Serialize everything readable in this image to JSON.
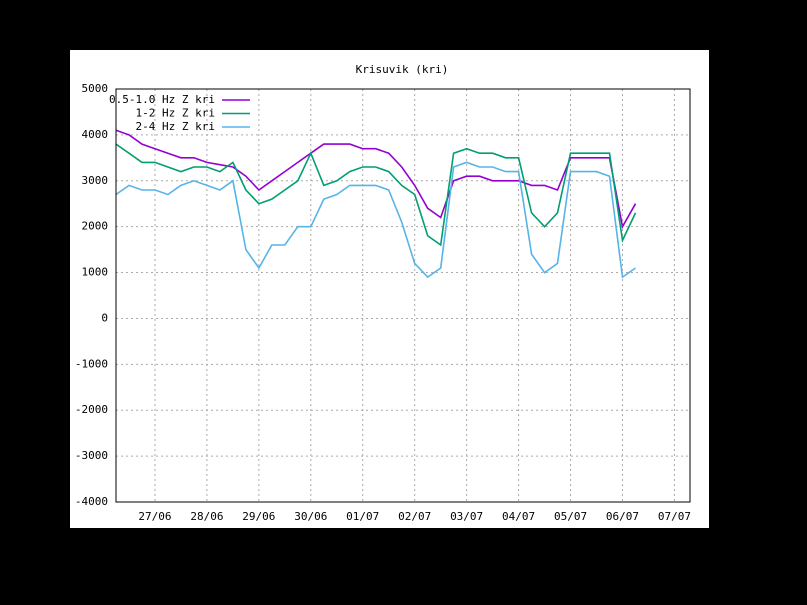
{
  "chart_data": {
    "type": "line",
    "title": "Krisuvik (kri)",
    "x": [
      -0.75,
      -0.5,
      -0.25,
      0,
      0.25,
      0.5,
      0.75,
      1,
      1.25,
      1.5,
      1.75,
      2,
      2.25,
      2.5,
      2.75,
      3,
      3.25,
      3.5,
      3.75,
      4,
      4.25,
      4.5,
      4.75,
      5,
      5.25,
      5.5,
      5.75,
      6,
      6.25,
      6.5,
      6.75,
      7,
      7.25,
      7.5,
      7.75,
      8,
      8.25,
      8.5,
      8.75,
      9,
      9.25
    ],
    "series": [
      {
        "name": "0.5-1.0 Hz Z kri",
        "color": "#9400d3",
        "values": [
          4100,
          4000,
          3800,
          3700,
          3600,
          3500,
          3500,
          3400,
          3350,
          3300,
          3100,
          2800,
          3000,
          3200,
          3400,
          3600,
          3800,
          3800,
          3800,
          3700,
          3700,
          3600,
          3300,
          2900,
          2400,
          2200,
          3000,
          3100,
          3100,
          3000,
          3000,
          3000,
          2900,
          2900,
          2800,
          3500,
          3500,
          3500,
          3500,
          2000,
          2500
        ]
      },
      {
        "name": "1-2 Hz Z kri",
        "color": "#009e73",
        "values": [
          3800,
          3600,
          3400,
          3400,
          3300,
          3200,
          3300,
          3300,
          3200,
          3400,
          2800,
          2500,
          2600,
          2800,
          3000,
          3600,
          2900,
          3000,
          3200,
          3300,
          3300,
          3200,
          2900,
          2700,
          1800,
          1600,
          3600,
          3700,
          3600,
          3600,
          3500,
          3500,
          2300,
          2000,
          2300,
          3600,
          3600,
          3600,
          3600,
          1700,
          2300
        ]
      },
      {
        "name": "2-4 Hz Z kri",
        "color": "#56b4e9",
        "values": [
          2700,
          2900,
          2800,
          2800,
          2700,
          2900,
          3000,
          2900,
          2800,
          3000,
          1500,
          1100,
          1600,
          1600,
          2000,
          2000,
          2600,
          2700,
          2900,
          2900,
          2900,
          2800,
          2100,
          1200,
          900,
          1100,
          3300,
          3400,
          3300,
          3300,
          3200,
          3200,
          1400,
          1000,
          1200,
          3200,
          3200,
          3200,
          3100,
          900,
          1100
        ]
      }
    ],
    "xlim": [
      -0.75,
      10.3
    ],
    "xticks": [
      {
        "value": 0,
        "label": "27/06"
      },
      {
        "value": 1,
        "label": "28/06"
      },
      {
        "value": 2,
        "label": "29/06"
      },
      {
        "value": 3,
        "label": "30/06"
      },
      {
        "value": 4,
        "label": "01/07"
      },
      {
        "value": 5,
        "label": "02/07"
      },
      {
        "value": 6,
        "label": "03/07"
      },
      {
        "value": 7,
        "label": "04/07"
      },
      {
        "value": 8,
        "label": "05/07"
      },
      {
        "value": 9,
        "label": "06/07"
      },
      {
        "value": 10,
        "label": "07/07"
      }
    ],
    "ylim": [
      -4000,
      5000
    ],
    "yticks": [
      -4000,
      -3000,
      -2000,
      -1000,
      0,
      1000,
      2000,
      3000,
      4000,
      5000
    ],
    "grid": true
  }
}
